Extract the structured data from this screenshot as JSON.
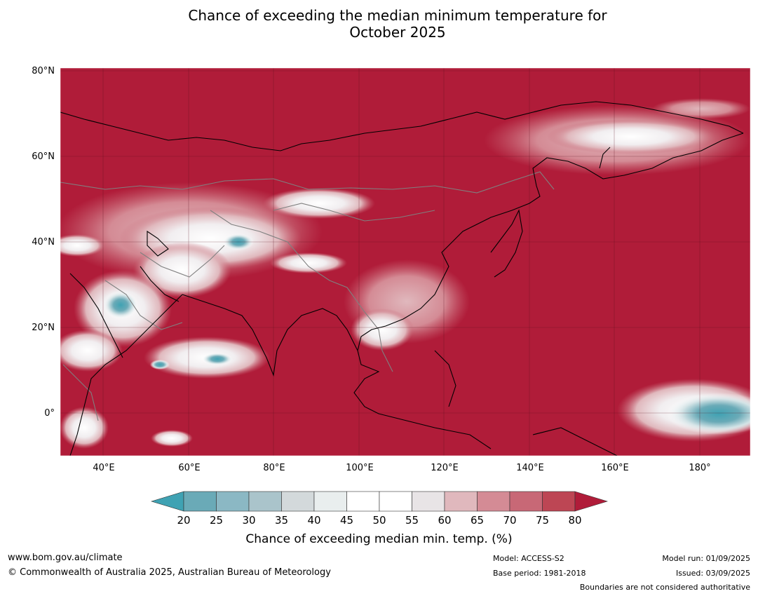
{
  "title_line1": "Chance of exceeding the median minimum temperature for",
  "title_line2": "October 2025",
  "map": {
    "lat_labels": [
      "80°N",
      "60°N",
      "40°N",
      "20°N",
      "0°"
    ],
    "lon_labels": [
      "40°E",
      "60°E",
      "80°E",
      "100°E",
      "120°E",
      "140°E",
      "160°E",
      "180°"
    ],
    "colors": {
      "ocean_land_high": "#b01c39",
      "coastline": "#000000",
      "border": "#808080"
    }
  },
  "colorbar": {
    "ticks": [
      "20",
      "25",
      "30",
      "35",
      "40",
      "45",
      "50",
      "55",
      "60",
      "65",
      "70",
      "75",
      "80"
    ],
    "segment_colors": [
      "#6aaab7",
      "#8bb8c4",
      "#aac4cb",
      "#d3d9db",
      "#e9eeee",
      "#ffffff",
      "#ffffff",
      "#e8e4e6",
      "#e0b8bd",
      "#d48b95",
      "#c86876",
      "#bd4654"
    ],
    "low_extend_color": "#3fa2b3",
    "high_extend_color": "#b01c39",
    "label": "Chance of exceeding median min. temp. (%)"
  },
  "footer": {
    "website": "www.bom.gov.au/climate",
    "copyright": "© Commonwealth of Australia 2025, Australian Bureau of Meteorology",
    "model": "Model: ACCESS-S2",
    "base_period": "Base period: 1981-2018",
    "model_run": "Model run: 01/09/2025",
    "issued": "Issued: 03/09/2025",
    "disclaimer": "Boundaries are not considered authoritative"
  }
}
